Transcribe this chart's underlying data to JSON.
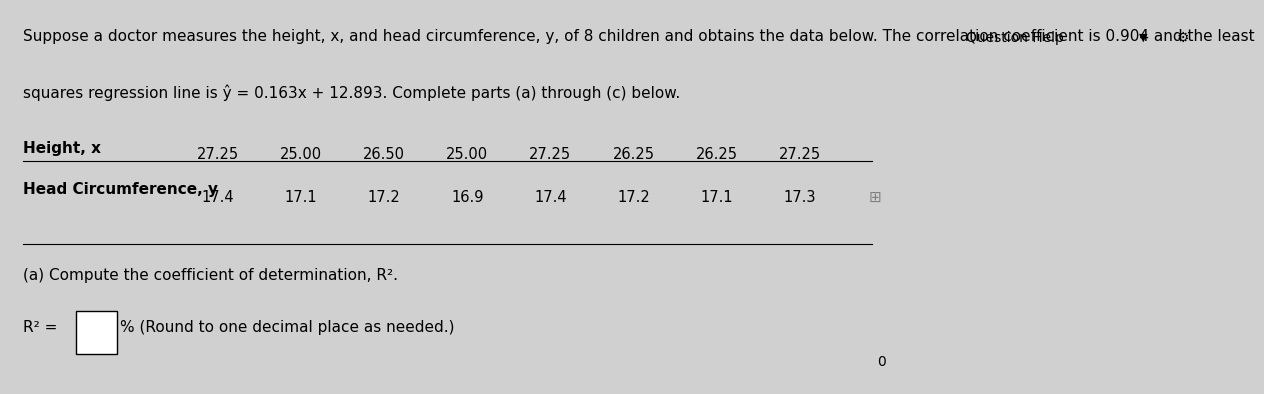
{
  "background_color": "#d0d0d0",
  "panel_color": "#e0e0e0",
  "title_bar_color": "#c0c0c0",
  "title_text": "Question Help",
  "intro_line1": "Suppose a doctor measures the height, x, and head circumference, y, of 8 children and obtains the data below. The correlation coefficient is 0.904 and the least",
  "intro_line2": "squares regression line is ŷ = 0.163x + 12.893. Complete parts (a) through (c) below.",
  "row1_label": "Height, x",
  "row2_label": "Head Circumference, y",
  "height_values": [
    "27.25",
    "25.00",
    "26.50",
    "25.00",
    "27.25",
    "26.25",
    "26.25",
    "27.25"
  ],
  "circ_values": [
    "17.4",
    "17.1",
    "17.2",
    "16.9",
    "17.4",
    "17.2",
    "17.1",
    "17.3"
  ],
  "part_a_text": "(a) Compute the coefficient of determination, R².",
  "r2_label": "R² =",
  "r2_suffix": "% (Round to one decimal place as needed.)",
  "corner_text": "0",
  "font_size_main": 11,
  "font_size_table": 10.5
}
